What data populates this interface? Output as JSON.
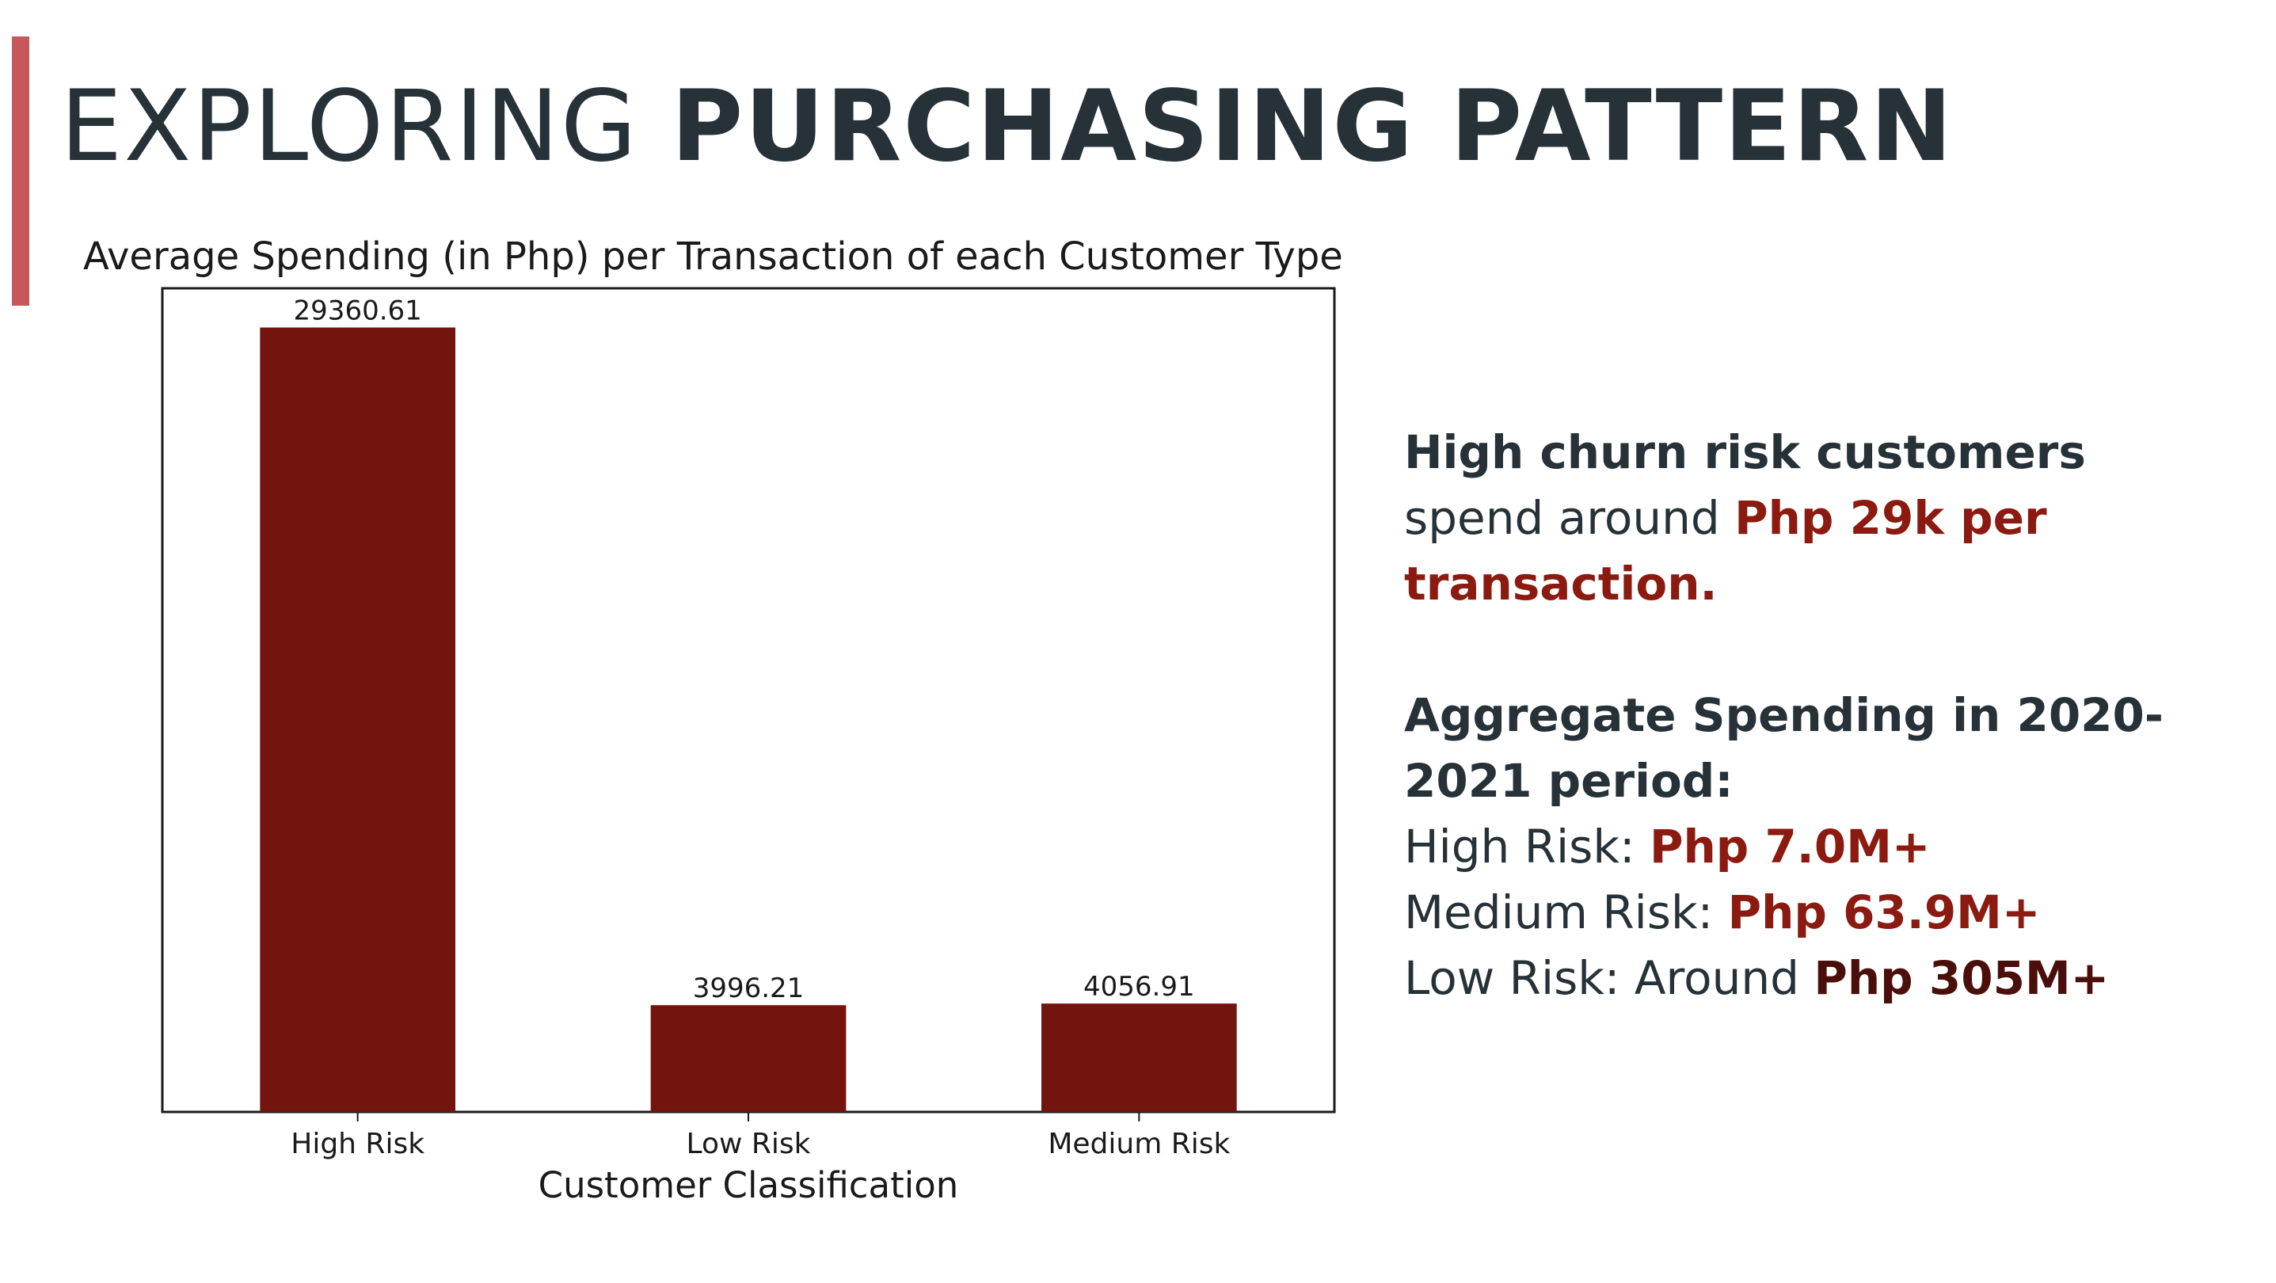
{
  "slide": {
    "title_light": "EXPLORING ",
    "title_bold": "PURCHASING PATTERN"
  },
  "colors": {
    "accent": "#c7585a",
    "bar": "#74140f",
    "highlight": "#8b1a10",
    "highlight_dark": "#4a0f0a",
    "text": "#263238"
  },
  "chart_data": {
    "type": "bar",
    "title": "Average Spending (in Php) per Transaction of each Customer Type",
    "xlabel": "Customer Classification",
    "ylabel": "",
    "categories": [
      "High Risk",
      "Low Risk",
      "Medium Risk"
    ],
    "values": [
      29360.61,
      3996.21,
      4056.91
    ],
    "data_labels": [
      "29360.61",
      "3996.21",
      "4056.91"
    ],
    "ylim": [
      0,
      30828.64
    ],
    "grid": false,
    "legend": "none"
  },
  "insights": {
    "block1": {
      "lead": "High churn risk customers",
      "text": "spend around ",
      "highlight": "Php 29k per transaction."
    },
    "block2": {
      "heading": "Aggregate Spending in 2020-2021 period:",
      "lines": [
        {
          "label": "High Risk:  ",
          "value": "Php 7.0M+"
        },
        {
          "label": "Medium Risk: ",
          "value": "Php 63.9M+"
        },
        {
          "label": "Low Risk: Around ",
          "value": "Php 305M+"
        }
      ]
    }
  }
}
